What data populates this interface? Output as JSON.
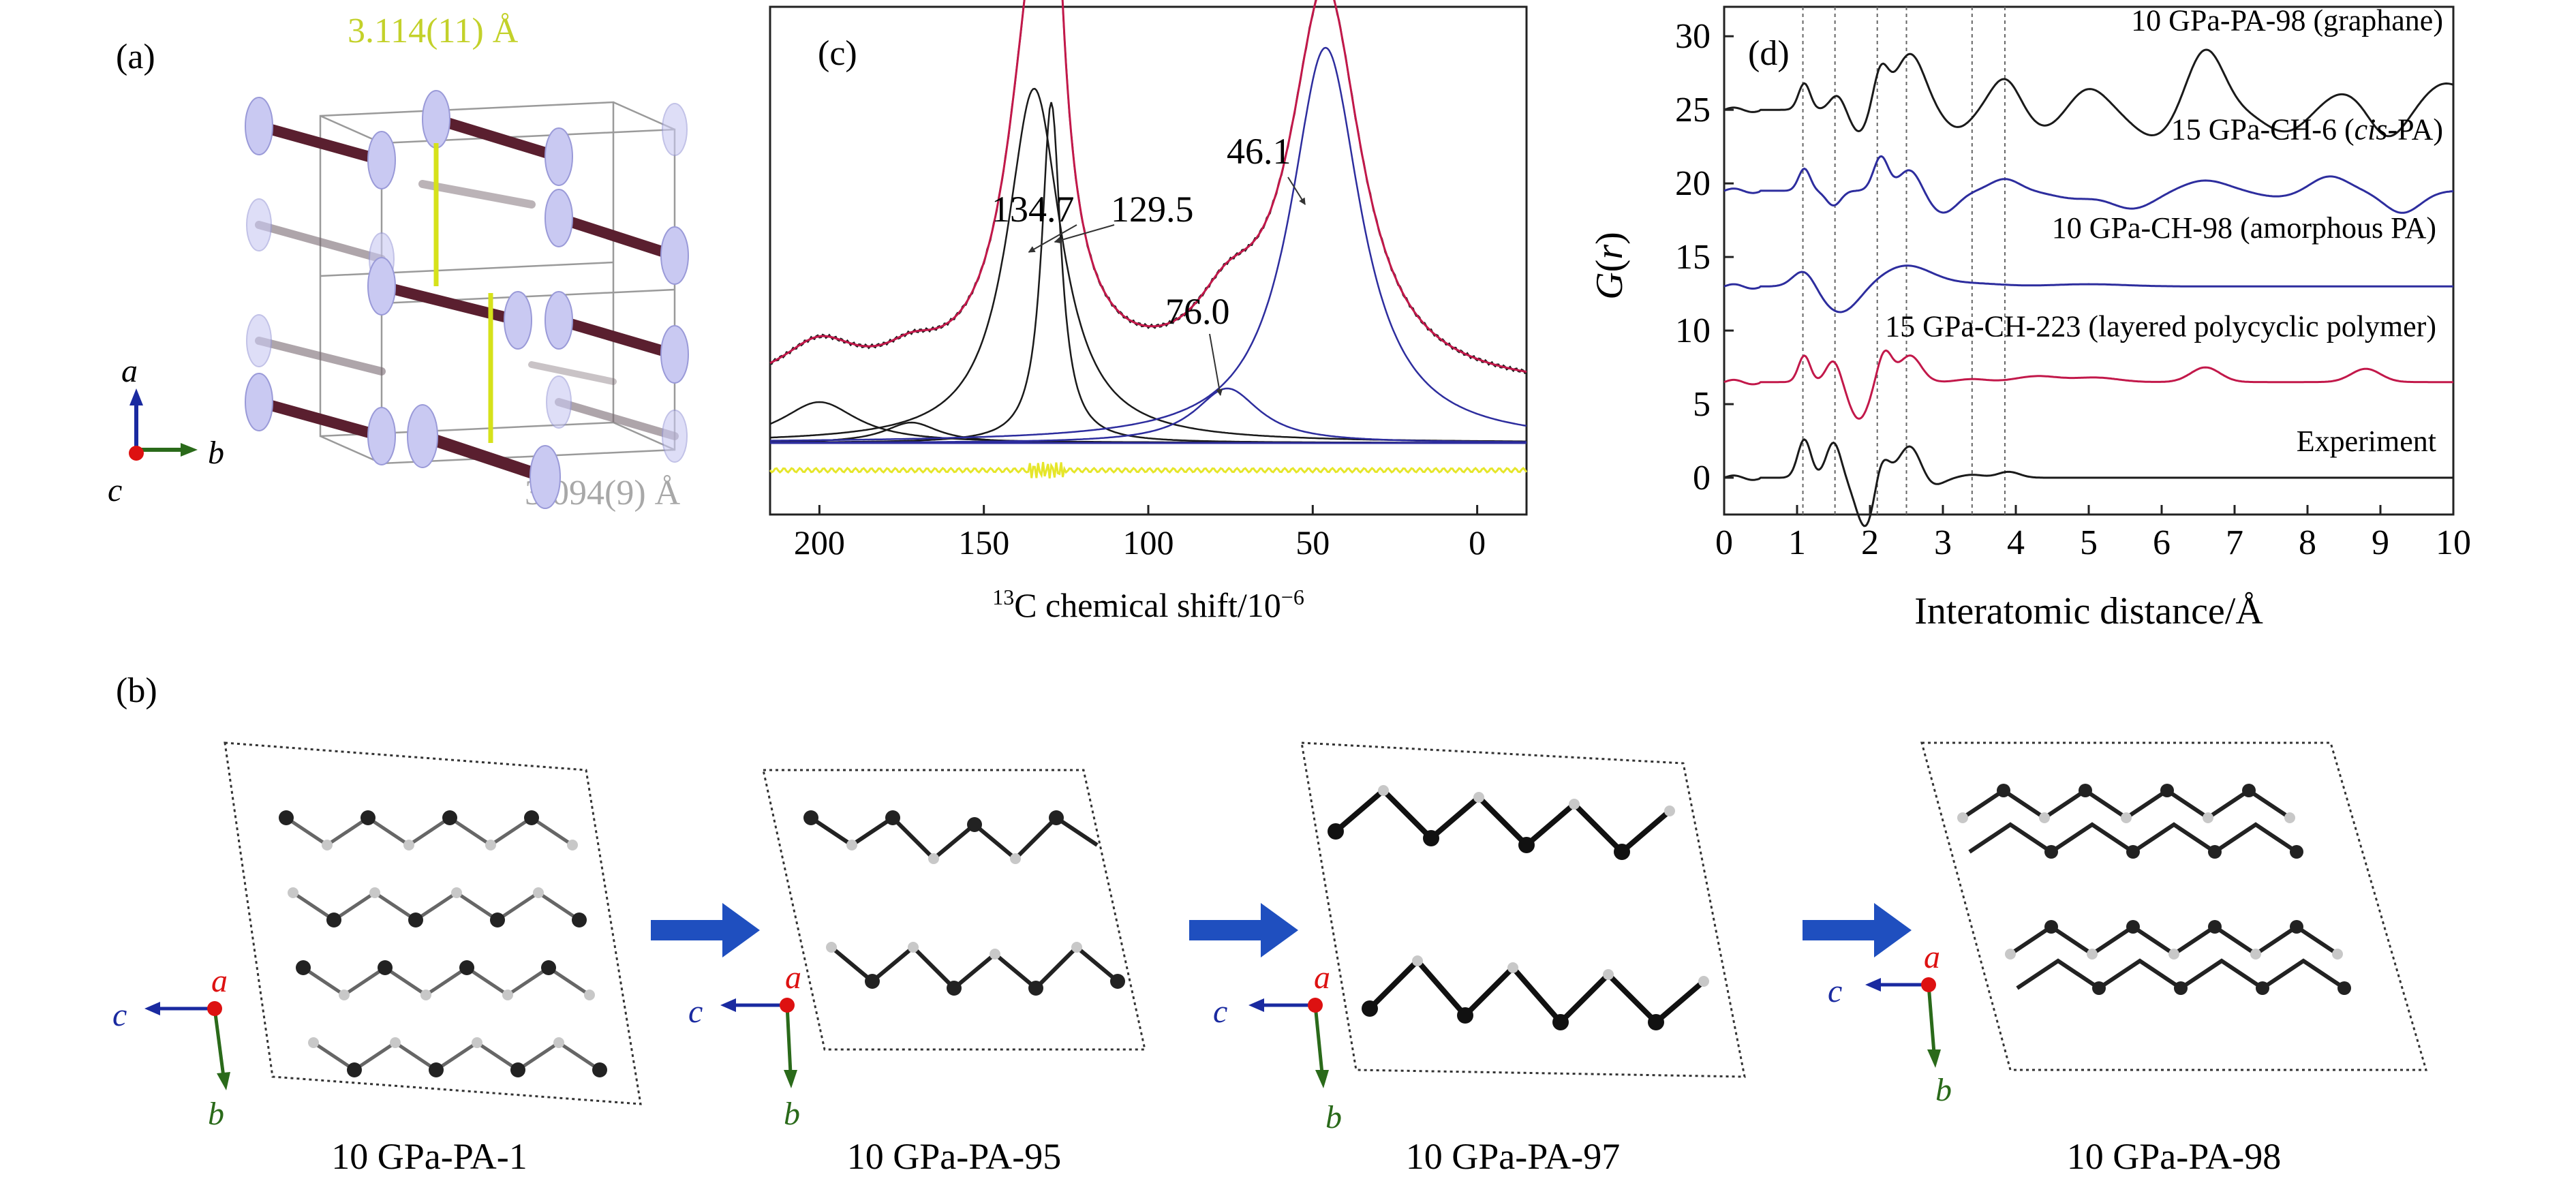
{
  "panels": {
    "a": {
      "label": "(a)",
      "bond_top": "3.114(11) Å",
      "bond_bottom": "3.094(9) Å",
      "axes": {
        "a": "a",
        "b": "b",
        "c": "c"
      }
    },
    "b": {
      "label": "(b)",
      "axes": {
        "a": "a",
        "b": "b",
        "c": "c"
      },
      "structures": [
        "10 GPa-PA-1",
        "10 GPa-PA-95",
        "10 GPa-PA-97",
        "10 GPa-PA-98"
      ]
    }
  },
  "colors": {
    "red": "#c2184a",
    "blue": "#2d2d9e",
    "black": "#1a1a1a",
    "yellow": "#e6e62a",
    "arrow": "#1f4fbf",
    "bond_yellow": "#d6e21a",
    "ellipsoid": "#c9c9f2",
    "bond_dark": "#5a1f2f",
    "axis_red": "#d11",
    "axis_green": "#2a6a1a",
    "axis_blue": "#1a2aa0"
  },
  "chart_data": [
    {
      "id": "c",
      "panel_label": "(c)",
      "type": "line",
      "title": "",
      "xlabel_sup": "13",
      "xlabel": "C chemical shift/10",
      "xlabel_exp": "−6",
      "ylabel": "",
      "xlim": [
        215,
        -15
      ],
      "ylim": [
        0,
        1
      ],
      "x_ticks": [
        200,
        150,
        100,
        50,
        0
      ],
      "x_tick_labels": [
        "200",
        "150",
        "100",
        "50",
        "0"
      ],
      "annotations": [
        {
          "text": "134.7",
          "x": 134.7
        },
        {
          "text": "129.5",
          "x": 129.5
        },
        {
          "text": "46.1",
          "x": 46.1
        },
        {
          "text": "76.0",
          "x": 76.0
        }
      ],
      "peaks": [
        {
          "center": 200,
          "height": 0.06,
          "width": 14,
          "color": "black"
        },
        {
          "center": 172,
          "height": 0.03,
          "width": 10,
          "color": "black"
        },
        {
          "center": 134.7,
          "height": 0.52,
          "width": 10,
          "color": "black"
        },
        {
          "center": 129.5,
          "height": 0.5,
          "width": 3.5,
          "color": "black"
        },
        {
          "center": 76.0,
          "height": 0.08,
          "width": 12,
          "color": "blue"
        },
        {
          "center": 46.1,
          "height": 0.58,
          "width": 13,
          "color": "blue"
        }
      ],
      "series": [
        {
          "name": "experimental",
          "color": "black"
        },
        {
          "name": "fit",
          "color": "red"
        },
        {
          "name": "components",
          "color": "black"
        },
        {
          "name": "residual",
          "color": "yellow"
        }
      ]
    },
    {
      "id": "d",
      "panel_label": "(d)",
      "type": "line",
      "title": "",
      "xlabel": "Interatomic distance/Å",
      "ylabel": "G",
      "ylabel_var": "r",
      "xlim": [
        0,
        10
      ],
      "ylim": [
        -2.5,
        32
      ],
      "x_ticks": [
        0,
        1,
        2,
        3,
        4,
        5,
        6,
        7,
        8,
        9,
        10
      ],
      "x_tick_labels": [
        "0",
        "1",
        "2",
        "3",
        "4",
        "5",
        "6",
        "7",
        "8",
        "9",
        "10"
      ],
      "y_ticks": [
        0,
        5,
        10,
        15,
        20,
        25,
        30
      ],
      "y_tick_labels": [
        "0",
        "5",
        "10",
        "15",
        "20",
        "25",
        "30"
      ],
      "vlines": [
        1.08,
        1.52,
        2.1,
        2.5,
        3.4,
        3.85
      ],
      "series": [
        {
          "name": "Experiment",
          "label": "Experiment",
          "offset": 0,
          "color": "black",
          "peaks": [
            [
              1.1,
              2.6,
              0.09
            ],
            [
              1.5,
              2.4,
              0.1
            ],
            [
              1.95,
              -3.5,
              0.14
            ],
            [
              2.15,
              2.0,
              0.1
            ],
            [
              2.55,
              2.2,
              0.15
            ],
            [
              2.85,
              -0.6,
              0.15
            ],
            [
              3.4,
              0.2,
              0.15
            ],
            [
              3.9,
              0.4,
              0.15
            ]
          ]
        },
        {
          "name": "15 GPa-CH-223",
          "label": "15 GPa-CH-223 (layered polycyclic polymer)",
          "offset": 6.5,
          "color": "red",
          "peaks": [
            [
              1.1,
              1.8,
              0.08
            ],
            [
              1.5,
              1.5,
              0.1
            ],
            [
              1.85,
              -2.5,
              0.14
            ],
            [
              2.2,
              2.1,
              0.1
            ],
            [
              2.55,
              1.8,
              0.15
            ],
            [
              3.4,
              0.2,
              0.2
            ],
            [
              4.3,
              0.4,
              0.3
            ],
            [
              5.1,
              0.3,
              0.3
            ],
            [
              6.6,
              1.0,
              0.2
            ],
            [
              8.8,
              0.9,
              0.2
            ]
          ]
        },
        {
          "name": "10 GPa-CH-98",
          "label": "10 GPa-CH-98 (amorphous PA)",
          "offset": 13,
          "color": "blue",
          "peaks": [
            [
              1.1,
              1.2,
              0.15
            ],
            [
              1.6,
              -1.8,
              0.25
            ],
            [
              2.5,
              1.4,
              0.35
            ],
            [
              3.4,
              0.2,
              0.4
            ],
            [
              5.0,
              0.15,
              0.5
            ]
          ]
        },
        {
          "name": "15 GPa-CH-6",
          "label_pre": "15 GPa-CH-6 (",
          "label_em": "cis",
          "label_post": "-PA)",
          "offset": 19.5,
          "color": "blue",
          "peaks": [
            [
              1.1,
              1.5,
              0.08
            ],
            [
              1.5,
              -1.0,
              0.1
            ],
            [
              2.15,
              2.3,
              0.1
            ],
            [
              2.55,
              1.5,
              0.15
            ],
            [
              3.0,
              -1.5,
              0.2
            ],
            [
              3.85,
              0.8,
              0.2
            ],
            [
              4.8,
              -0.5,
              0.3
            ],
            [
              5.6,
              -1.2,
              0.3
            ],
            [
              6.6,
              0.7,
              0.3
            ],
            [
              7.6,
              -0.4,
              0.3
            ],
            [
              8.3,
              1.0,
              0.25
            ],
            [
              9.3,
              -1.5,
              0.25
            ]
          ]
        },
        {
          "name": "10 GPa-PA-98",
          "label": "10 GPa-PA-98 (graphane)",
          "offset": 25,
          "color": "black",
          "peaks": [
            [
              1.1,
              1.8,
              0.08
            ],
            [
              1.55,
              1.0,
              0.1
            ],
            [
              1.85,
              -1.5,
              0.12
            ],
            [
              2.15,
              2.6,
              0.1
            ],
            [
              2.55,
              3.8,
              0.2
            ],
            [
              3.2,
              -1.2,
              0.2
            ],
            [
              3.85,
              2.2,
              0.2
            ],
            [
              4.4,
              -1.2,
              0.25
            ],
            [
              5.0,
              1.5,
              0.25
            ],
            [
              5.9,
              -1.8,
              0.3
            ],
            [
              6.6,
              4.2,
              0.25
            ],
            [
              7.7,
              -1.5,
              0.3
            ],
            [
              8.5,
              1.2,
              0.3
            ],
            [
              9.1,
              -2.0,
              0.25
            ],
            [
              9.9,
              1.8,
              0.3
            ]
          ]
        }
      ]
    }
  ]
}
